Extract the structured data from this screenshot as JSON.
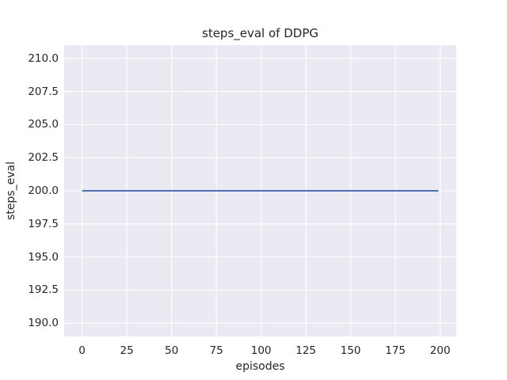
{
  "style": {
    "figure_background": "#ffffff",
    "plot_background": "#eaeaf2",
    "grid_color": "#ffffff",
    "text_color": "#262626",
    "accent_line_color": "#4c72b0"
  },
  "chart_data": {
    "type": "line",
    "title": "steps_eval of DDPG",
    "xlabel": "episodes",
    "ylabel": "steps_eval",
    "xlim": [
      -10,
      209
    ],
    "ylim": [
      189,
      211
    ],
    "grid": true,
    "legend_position": "none",
    "xticks": {
      "values": [
        0,
        25,
        50,
        75,
        100,
        125,
        150,
        175,
        200
      ],
      "labels": [
        "0",
        "25",
        "50",
        "75",
        "100",
        "125",
        "150",
        "175",
        "200"
      ]
    },
    "yticks": {
      "values": [
        190,
        192.5,
        195,
        197.5,
        200,
        202.5,
        205,
        207.5,
        210
      ],
      "labels": [
        "190.0",
        "192.5",
        "195.0",
        "197.5",
        "200.0",
        "202.5",
        "205.0",
        "207.5",
        "210.0"
      ]
    },
    "series": [
      {
        "name": "DDPG",
        "color": "#4c72b0",
        "line_width": 2,
        "description": "constant steps_eval of 200 across all evaluation episodes",
        "x": [
          0,
          199
        ],
        "y": [
          200,
          200
        ]
      }
    ]
  }
}
